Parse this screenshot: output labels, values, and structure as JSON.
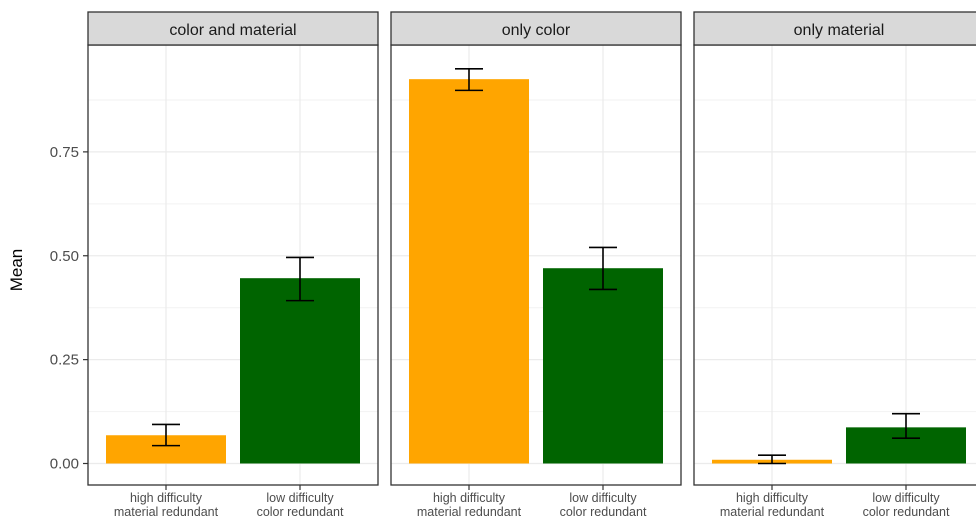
{
  "chart_data": {
    "type": "bar",
    "ylabel": "Mean",
    "ylim": [
      -0.03,
      1.0
    ],
    "y_ticks": [
      {
        "value": 0.0,
        "label": "0.00"
      },
      {
        "value": 0.25,
        "label": "0.25"
      },
      {
        "value": 0.5,
        "label": "0.50"
      },
      {
        "value": 0.75,
        "label": "0.75"
      }
    ],
    "categories": [
      {
        "line1": "high difficulty",
        "line2": "material redundant",
        "color": "#FFA500"
      },
      {
        "line1": "low difficulty",
        "line2": "color redundant",
        "color": "#006400"
      }
    ],
    "facets": [
      {
        "title": "color and material",
        "values": [
          0.068,
          0.446
        ],
        "error_low": [
          0.043,
          0.392
        ],
        "error_high": [
          0.094,
          0.496
        ]
      },
      {
        "title": "only color",
        "values": [
          0.925,
          0.47
        ],
        "error_low": [
          0.898,
          0.419
        ],
        "error_high": [
          0.95,
          0.52
        ]
      },
      {
        "title": "only material",
        "values": [
          0.009,
          0.087
        ],
        "error_low": [
          0.0,
          0.061
        ],
        "error_high": [
          0.02,
          0.12
        ]
      }
    ],
    "grid": true,
    "legend": "none"
  }
}
